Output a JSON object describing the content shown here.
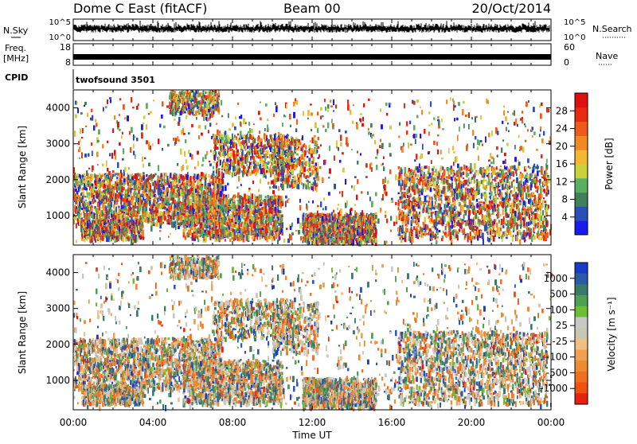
{
  "header": {
    "station": "Dome C East (fitACF)",
    "beam": "Beam 00",
    "date": "20/Oct/2014"
  },
  "cpid_label": "CPID",
  "cpid_value": "twofsound 3501",
  "time_axis": {
    "ticks": [
      "00:00",
      "04:00",
      "08:00",
      "12:00",
      "16:00",
      "20:00",
      "00:00"
    ],
    "label": "Time UT"
  },
  "chart_data": [
    {
      "type": "line",
      "panel": "noise",
      "left_label": "N.Sky",
      "right_label": "N.Search",
      "left_ticks": [
        "10^5",
        "10^0"
      ],
      "right_ticks": [
        "10^5",
        "10^0"
      ],
      "xlim": [
        0,
        24
      ]
    },
    {
      "type": "line",
      "panel": "frequency",
      "left_label_1": "Freq.",
      "left_label_2": "[MHz]",
      "right_label": "Nave",
      "left_ticks": [
        "18",
        "8"
      ],
      "right_ticks": [
        "60",
        "0"
      ],
      "xlim": [
        0,
        24
      ]
    },
    {
      "type": "heatmap",
      "panel": "power",
      "title": "",
      "xlabel": "",
      "ylabel": "Slant Range [km]",
      "yticks": [
        "1000",
        "2000",
        "3000",
        "4000"
      ],
      "ylim": [
        180,
        4500
      ],
      "xlim": [
        0,
        24
      ],
      "colorbar_label": "Power [dB]",
      "colorbar_ticks": [
        "4",
        "8",
        "12",
        "16",
        "20",
        "24",
        "28"
      ],
      "colorbar_colors": [
        "#1a1af0",
        "#2a4fb8",
        "#3f7f5a",
        "#58b060",
        "#c8d23a",
        "#f2b830",
        "#f08a20",
        "#ee5a18",
        "#e82a10",
        "#e01010"
      ]
    },
    {
      "type": "heatmap",
      "panel": "velocity",
      "title": "",
      "xlabel": "Time UT",
      "ylabel": "Slant Range [km]",
      "yticks": [
        "1000",
        "2000",
        "3000",
        "4000"
      ],
      "ylim": [
        180,
        4500
      ],
      "xlim": [
        0,
        24
      ],
      "colorbar_label": "Velocity [m s⁻¹]",
      "colorbar_ticks": [
        "1000",
        "500",
        "100",
        "25",
        "-25",
        "-100",
        "-500",
        "-1000"
      ],
      "colorbar_colors": [
        "#1a3ac8",
        "#2a5aa8",
        "#3a7a6a",
        "#4fa050",
        "#6cc030",
        "#c8c8c8",
        "#c8c8b0",
        "#f0c080",
        "#f0a050",
        "#ee8a30",
        "#f07020",
        "#f05010",
        "#e82010"
      ]
    }
  ]
}
